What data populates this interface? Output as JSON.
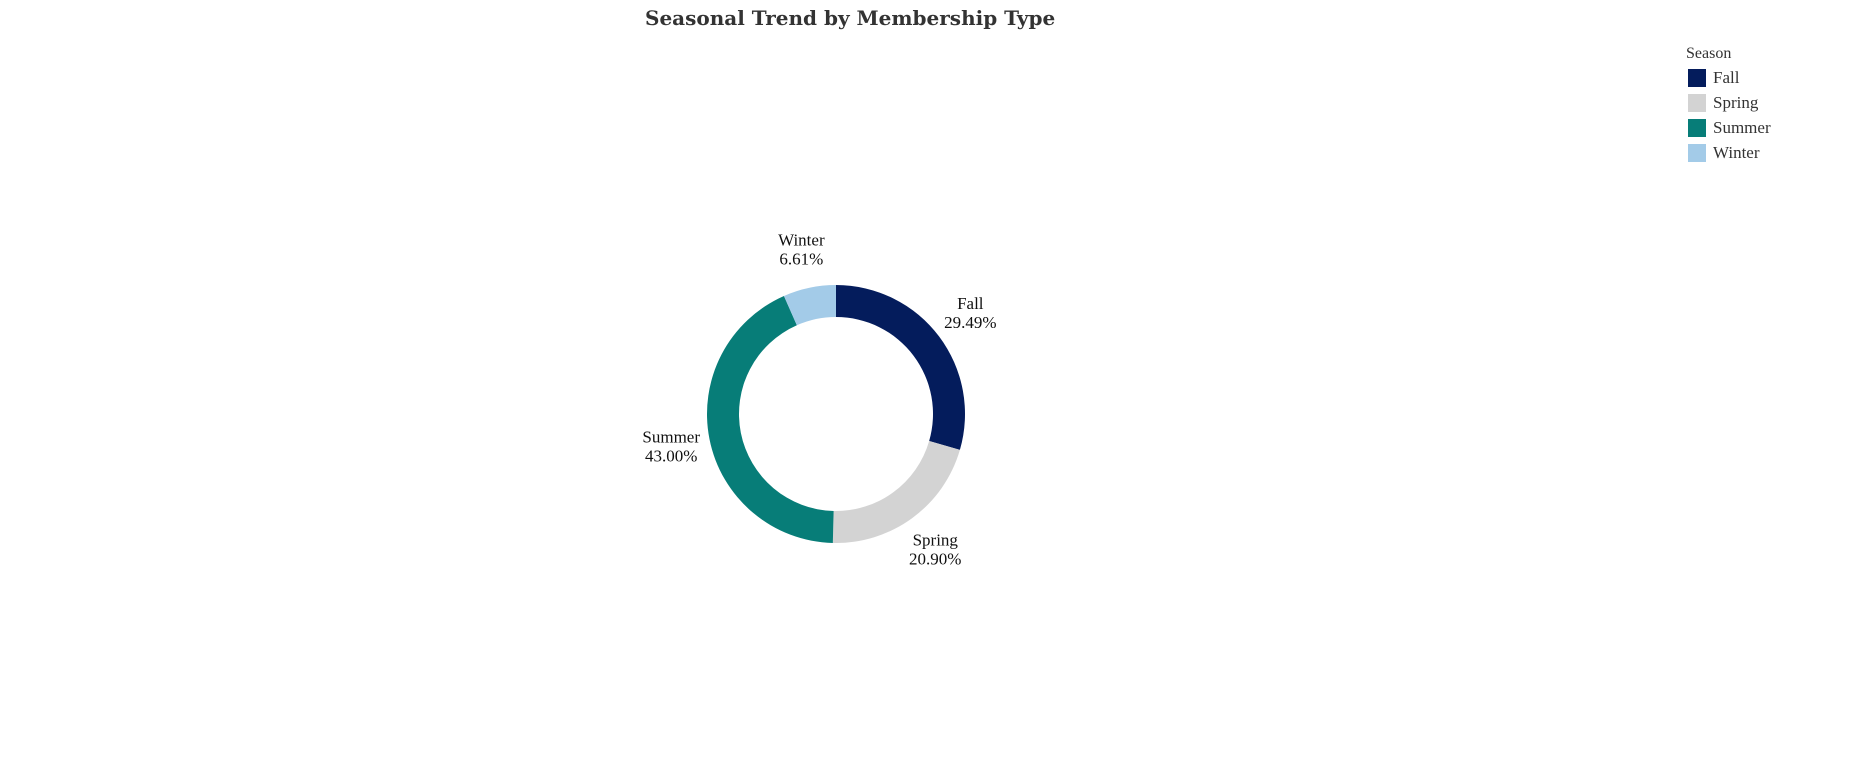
{
  "chart_data": {
    "type": "pie",
    "title": "Seasonal Trend by Membership Type",
    "hole": true,
    "legend": {
      "title": "Season",
      "placement": "top-right",
      "items": [
        {
          "label": "Fall",
          "color": "#041c5c"
        },
        {
          "label": "Spring",
          "color": "#d3d3d3"
        },
        {
          "label": "Summer",
          "color": "#077d78"
        },
        {
          "label": "Winter",
          "color": "#a3cbe8"
        }
      ]
    },
    "slices": [
      {
        "label": "Fall",
        "value": 29.49,
        "percent_text": "29.49%",
        "color": "#041c5c"
      },
      {
        "label": "Spring",
        "value": 20.9,
        "percent_text": "20.90%",
        "color": "#d3d3d3"
      },
      {
        "label": "Summer",
        "value": 43.0,
        "percent_text": "43.00%",
        "color": "#077d78"
      },
      {
        "label": "Winter",
        "value": 6.61,
        "percent_text": "6.61%",
        "color": "#a3cbe8"
      }
    ]
  }
}
